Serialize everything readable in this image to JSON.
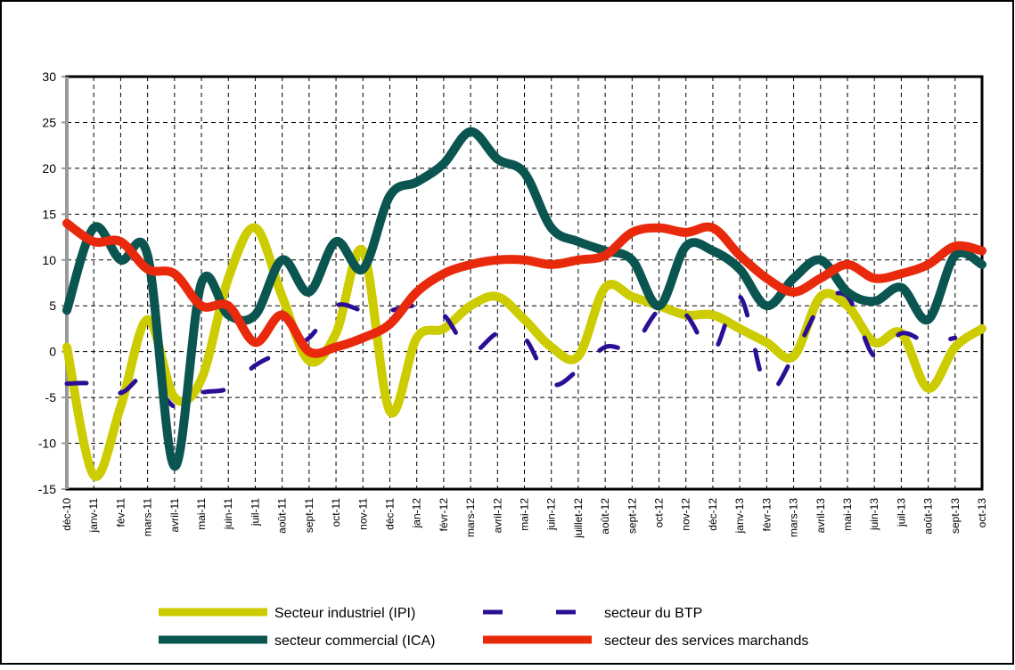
{
  "chart_data": {
    "type": "line",
    "categories": [
      "déc-10",
      "janv-11",
      "fév-11",
      "mars-11",
      "avril-11",
      "mai-11",
      "juin-11",
      "juil-11",
      "août-11",
      "sept-11",
      "oct-11",
      "nov-11",
      "déc-11",
      "jan-12",
      "févr-12",
      "mars-12",
      "avril-12",
      "mai-12",
      "juin-12",
      "juillet-12",
      "août-12",
      "sept-12",
      "oct-12",
      "nov-12",
      "déc-12",
      "janv-13",
      "févr-13",
      "mars-13",
      "avril-13",
      "mai-13",
      "juin-13",
      "juil-13",
      "août-13",
      "sept-13",
      "oct-13"
    ],
    "series": [
      {
        "name": "Secteur industriel (IPI)",
        "color": "#cccc00",
        "dash": false,
        "values": [
          0.5,
          -13.5,
          -6,
          3.5,
          -5,
          -3,
          8,
          13.5,
          6,
          -1,
          2,
          11,
          -6.5,
          1.5,
          2.5,
          5,
          6,
          3.5,
          0.5,
          -0.5,
          7,
          6,
          5,
          4,
          4,
          2.5,
          1,
          -0.5,
          6,
          5,
          1,
          2,
          -4,
          0.5,
          2.5
        ]
      },
      {
        "name": "secteur du BTP",
        "color": "#2b0e96",
        "dash": true,
        "values": [
          -3.5,
          -3.5,
          -4.5,
          -2.5,
          -6,
          -4.5,
          -4,
          -1.5,
          0,
          1.5,
          5,
          4.5,
          4.5,
          5,
          4,
          0,
          2,
          1.5,
          -3.5,
          -2,
          0.5,
          0.5,
          4.5,
          4,
          0,
          6,
          -4,
          -0.5,
          5,
          6,
          -0.5,
          2,
          1,
          1.5,
          null
        ]
      },
      {
        "name": "secteur commercial (ICA)",
        "color": "#0b5551",
        "dash": false,
        "values": [
          4.5,
          13.5,
          10,
          10.5,
          -12.5,
          7.5,
          4,
          4,
          10,
          6.5,
          12,
          9,
          17,
          18.5,
          20.5,
          24,
          21,
          19.5,
          13.5,
          12,
          11,
          10,
          5,
          11.5,
          11,
          9,
          5,
          8,
          10,
          6.5,
          5.5,
          7,
          3.5,
          10.5,
          9.5
        ]
      },
      {
        "name": "secteur des services marchands",
        "color": "#e8290b",
        "dash": false,
        "values": [
          14,
          12,
          12,
          9,
          8.5,
          5,
          5,
          1,
          4,
          0,
          0.5,
          1.5,
          3,
          6.5,
          8.5,
          9.5,
          10,
          10,
          9.5,
          10,
          10.5,
          13,
          13.5,
          13,
          13.5,
          10.5,
          8,
          6.5,
          8,
          9.5,
          8,
          8.5,
          9.5,
          11.5,
          11
        ]
      }
    ],
    "ylim": [
      -15,
      30
    ],
    "yticks": [
      -15,
      -10,
      -5,
      0,
      5,
      10,
      15,
      20,
      25,
      30
    ],
    "grid": true
  }
}
